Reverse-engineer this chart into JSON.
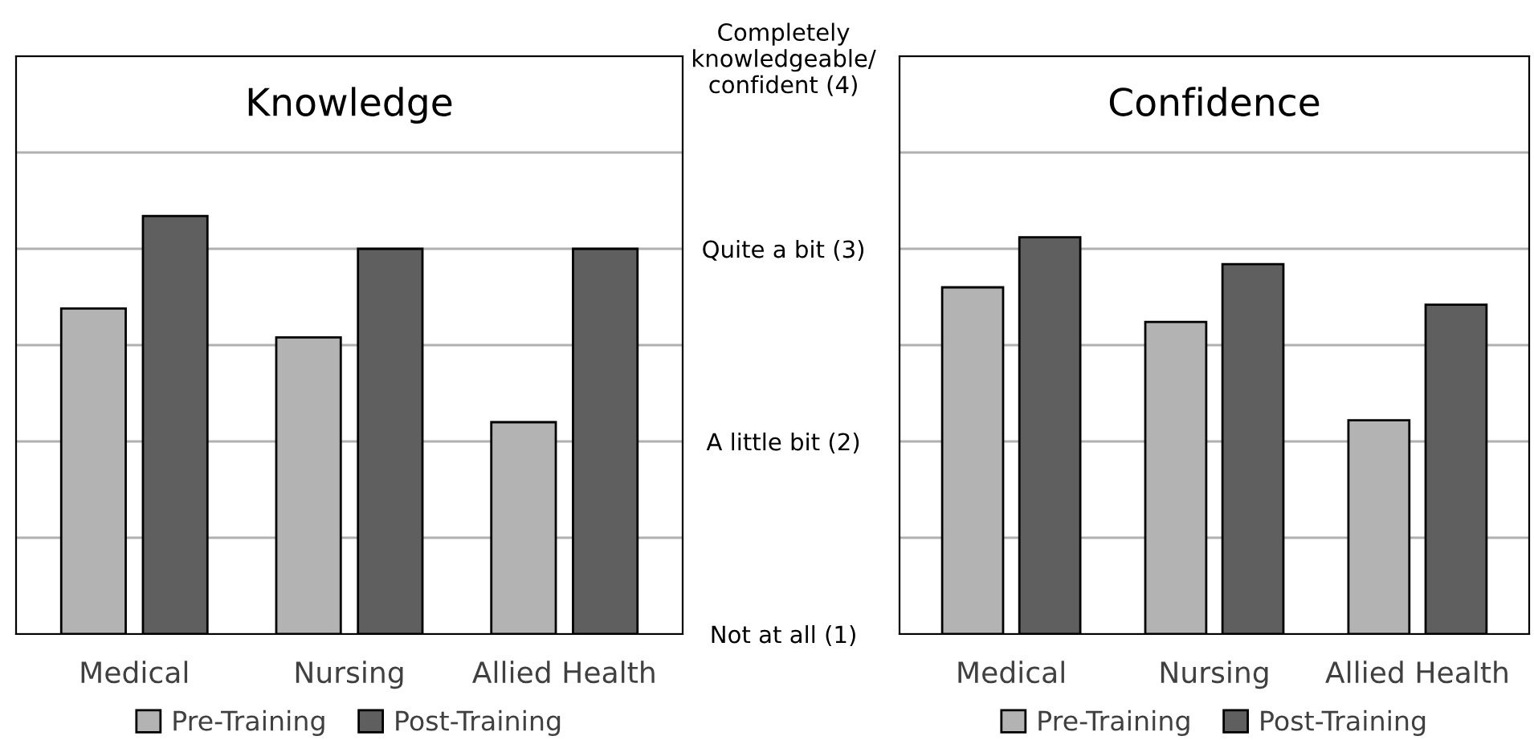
{
  "chart_data": [
    {
      "type": "bar",
      "title": "Knowledge",
      "categories": [
        "Medical",
        "Nursing",
        "Allied Health"
      ],
      "series": [
        {
          "name": "Pre-Training",
          "color": "#b3b3b3",
          "values": [
            2.69,
            2.54,
            2.1
          ]
        },
        {
          "name": "Post-Training",
          "color": "#5f5f5f",
          "values": [
            3.17,
            3.0,
            3.0
          ]
        }
      ],
      "ylim": [
        1,
        4
      ],
      "yticks": [
        1,
        1.5,
        2,
        2.5,
        3,
        3.5,
        4
      ],
      "tick_labels": "x",
      "grid": "y",
      "legend": "bottom"
    },
    {
      "type": "bar",
      "title": "Confidence",
      "categories": [
        "Medical",
        "Nursing",
        "Allied Health"
      ],
      "series": [
        {
          "name": "Pre-Training",
          "color": "#b3b3b3",
          "values": [
            2.8,
            2.62,
            2.11
          ]
        },
        {
          "name": "Post-Training",
          "color": "#5f5f5f",
          "values": [
            3.06,
            2.92,
            2.71
          ]
        }
      ],
      "ylim": [
        1,
        4
      ],
      "yticks": [
        {
          "value": 1,
          "label": "Not at all (1)"
        },
        {
          "value": 1.5,
          "label": null
        },
        {
          "value": 2,
          "label": "A little bit (2)"
        },
        {
          "value": 2.5,
          "label": null
        },
        {
          "value": 3,
          "label": "Quite a bit (3)"
        },
        {
          "value": 3.5,
          "label": null
        },
        {
          "value": 4,
          "label": "Completely\nknowledgeable/\nconfident (4)"
        }
      ],
      "grid": "y",
      "legend": "bottom"
    }
  ]
}
